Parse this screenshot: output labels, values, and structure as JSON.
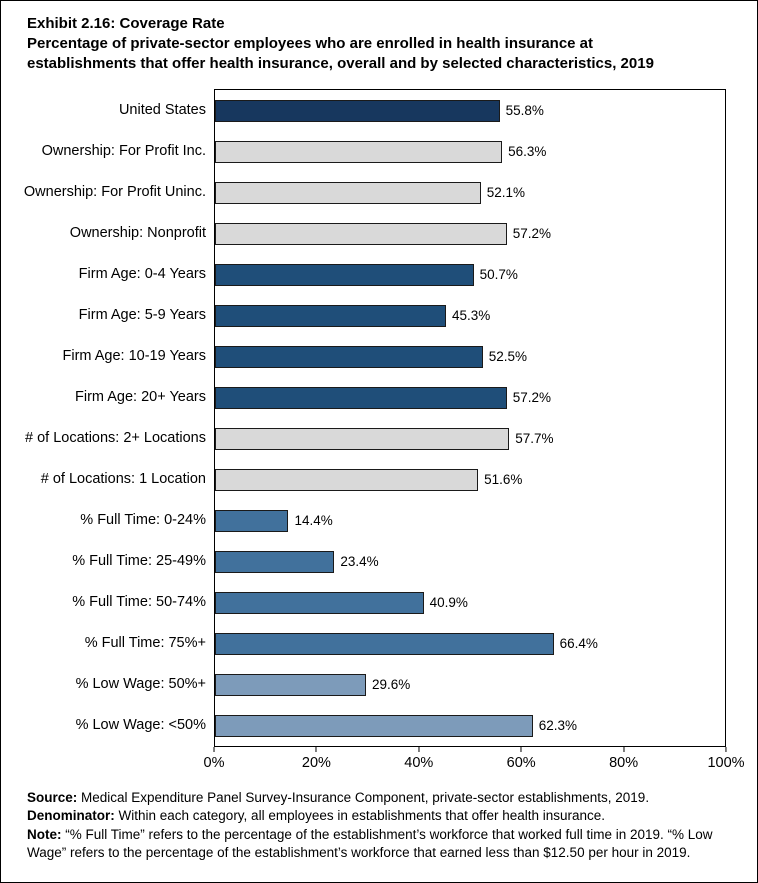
{
  "title": {
    "line1": "Exhibit 2.16: Coverage Rate",
    "line2": "Percentage of private-sector employees who are enrolled in health insurance at establishments that offer health insurance, overall and by selected characteristics, 2019"
  },
  "chart_data": {
    "type": "bar",
    "orientation": "horizontal",
    "title": "Exhibit 2.16: Coverage Rate",
    "subtitle": "Percentage of private-sector employees who are enrolled in health insurance at establishments that offer health insurance, overall and by selected characteristics, 2019",
    "xlabel": "",
    "ylabel": "",
    "xlim": [
      0,
      100
    ],
    "grid": false,
    "legend": "none",
    "x_ticks": [
      "0%",
      "20%",
      "40%",
      "60%",
      "80%",
      "100%"
    ],
    "x_tick_values": [
      0,
      20,
      40,
      60,
      80,
      100
    ],
    "categories": [
      "United States",
      "Ownership: For Profit Inc.",
      "Ownership: For Profit Uninc.",
      "Ownership: Nonprofit",
      "Firm Age: 0-4 Years",
      "Firm Age: 5-9 Years",
      "Firm Age: 10-19 Years",
      "Firm Age: 20+ Years",
      "# of Locations: 2+ Locations",
      "# of Locations: 1 Location",
      "% Full Time: 0-24%",
      "% Full Time: 25-49%",
      "% Full Time: 50-74%",
      "% Full Time: 75%+",
      "% Low Wage: 50%+",
      "% Low Wage: <50%"
    ],
    "values": [
      55.8,
      56.3,
      52.1,
      57.2,
      50.7,
      45.3,
      52.5,
      57.2,
      57.7,
      51.6,
      14.4,
      23.4,
      40.9,
      66.4,
      29.6,
      62.3
    ],
    "value_labels": [
      "55.8%",
      "56.3%",
      "52.1%",
      "57.2%",
      "50.7%",
      "45.3%",
      "52.5%",
      "57.2%",
      "57.7%",
      "51.6%",
      "14.4%",
      "23.4%",
      "40.9%",
      "66.4%",
      "29.6%",
      "62.3%"
    ],
    "bar_colors": [
      "#17375E",
      "#D9D9D9",
      "#D9D9D9",
      "#D9D9D9",
      "#1F4E79",
      "#1F4E79",
      "#1F4E79",
      "#1F4E79",
      "#D9D9D9",
      "#D9D9D9",
      "#41719C",
      "#41719C",
      "#41719C",
      "#41719C",
      "#7D9BBA",
      "#7D9BBA"
    ],
    "group_colors": {
      "united_states": "#17375E",
      "ownership": "#D9D9D9",
      "firm_age": "#1F4E79",
      "locations": "#D9D9D9",
      "full_time": "#41719C",
      "low_wage": "#7D9BBA"
    }
  },
  "footer": {
    "source_label": "Source:",
    "source_text": " Medical Expenditure Panel Survey-Insurance Component, private-sector establishments, 2019.",
    "denominator_label": "Denominator:",
    "denominator_text": " Within each category, all employees in establishments that offer health insurance.",
    "note_label": "Note:",
    "note_text": " “% Full Time” refers to the percentage of the establishment’s workforce that worked full time in 2019. “% Low Wage” refers to the percentage of the establishment’s workforce that earned less than $12.50 per hour in 2019."
  }
}
